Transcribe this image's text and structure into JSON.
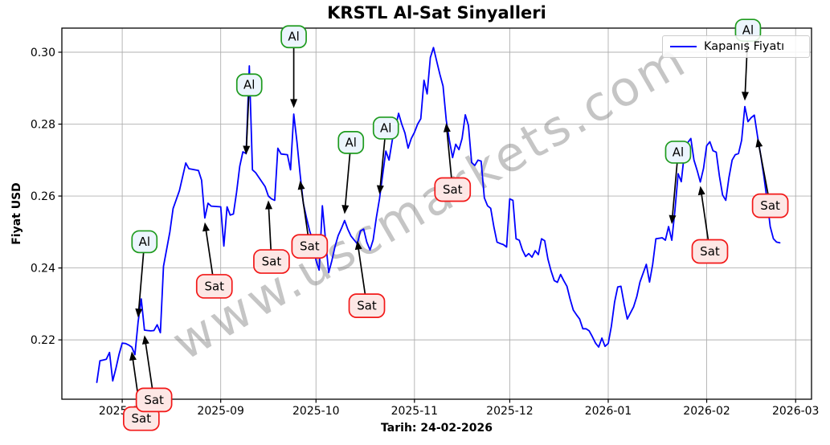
{
  "title": "KRSTL Al-Sat Sinyalleri",
  "watermark": "www.uscmarkets.com",
  "axes": {
    "y_label": "Fiyat USD",
    "x_label": "Tarih: 24-02-2026"
  },
  "legend": {
    "label": "Kapanış Fiyatı",
    "position": "upper right"
  },
  "colors": {
    "line": "#0000ff",
    "grid": "#b0b0b0",
    "buy_fill": "#ecf5fd",
    "buy_edge": "#1e9b1e",
    "sell_fill": "#fde7e5",
    "sell_edge": "#f21818",
    "arrow": "#000000",
    "watermark": "#7f7f7f"
  },
  "chart_data": {
    "type": "line",
    "title": "KRSTL Al-Sat Sinyalleri",
    "xlabel": "Tarih: 24-02-2026",
    "ylabel": "Fiyat USD",
    "grid": true,
    "legend_position": "upper right",
    "x_domain": [
      "2025-07-13",
      "2026-03-06"
    ],
    "y_domain": [
      0.2035,
      0.3067
    ],
    "x_ticks": [
      {
        "date": "2025-08-01",
        "label": "2025-08"
      },
      {
        "date": "2025-09-01",
        "label": "2025-09"
      },
      {
        "date": "2025-10-01",
        "label": "2025-10"
      },
      {
        "date": "2025-11-01",
        "label": "2025-11"
      },
      {
        "date": "2025-12-01",
        "label": "2025-12"
      },
      {
        "date": "2026-01-01",
        "label": "2026-01"
      },
      {
        "date": "2026-02-01",
        "label": "2026-02"
      },
      {
        "date": "2026-03-01",
        "label": "2026-03"
      }
    ],
    "y_ticks": [
      {
        "value": 0.22,
        "label": "0.22"
      },
      {
        "value": 0.24,
        "label": "0.24"
      },
      {
        "value": 0.26,
        "label": "0.26"
      },
      {
        "value": 0.28,
        "label": "0.28"
      },
      {
        "value": 0.3,
        "label": "0.30"
      }
    ],
    "series": [
      {
        "name": "Kapanış Fiyatı",
        "color": "#0000ff",
        "points": [
          [
            "2025-07-24",
            0.2082
          ],
          [
            "2025-07-25",
            0.2142
          ],
          [
            "2025-07-26",
            0.2144
          ],
          [
            "2025-07-27",
            0.2146
          ],
          [
            "2025-07-28",
            0.2165
          ],
          [
            "2025-07-29",
            0.2086
          ],
          [
            "2025-07-30",
            0.212
          ],
          [
            "2025-07-31",
            0.216
          ],
          [
            "2025-08-01",
            0.2191
          ],
          [
            "2025-08-02",
            0.219
          ],
          [
            "2025-08-03",
            0.2186
          ],
          [
            "2025-08-04",
            0.218
          ],
          [
            "2025-08-05",
            0.2159
          ],
          [
            "2025-08-06",
            0.225
          ],
          [
            "2025-08-07",
            0.2314
          ],
          [
            "2025-08-08",
            0.2227
          ],
          [
            "2025-08-09",
            0.2226
          ],
          [
            "2025-08-10",
            0.2225
          ],
          [
            "2025-08-11",
            0.2226
          ],
          [
            "2025-08-12",
            0.2242
          ],
          [
            "2025-08-13",
            0.222
          ],
          [
            "2025-08-14",
            0.2405
          ],
          [
            "2025-08-16",
            0.25
          ],
          [
            "2025-08-17",
            0.2565
          ],
          [
            "2025-08-19",
            0.2615
          ],
          [
            "2025-08-21",
            0.2692
          ],
          [
            "2025-08-22",
            0.2676
          ],
          [
            "2025-08-25",
            0.2671
          ],
          [
            "2025-08-26",
            0.2644
          ],
          [
            "2025-08-27",
            0.2539
          ],
          [
            "2025-08-28",
            0.258
          ],
          [
            "2025-08-29",
            0.2572
          ],
          [
            "2025-09-01",
            0.257
          ],
          [
            "2025-09-02",
            0.2461
          ],
          [
            "2025-09-03",
            0.257
          ],
          [
            "2025-09-04",
            0.2547
          ],
          [
            "2025-09-05",
            0.255
          ],
          [
            "2025-09-06",
            0.261
          ],
          [
            "2025-09-07",
            0.2683
          ],
          [
            "2025-09-08",
            0.2723
          ],
          [
            "2025-09-09",
            0.2718
          ],
          [
            "2025-09-10",
            0.2962
          ],
          [
            "2025-09-11",
            0.2673
          ],
          [
            "2025-09-12",
            0.2665
          ],
          [
            "2025-09-13",
            0.2652
          ],
          [
            "2025-09-14",
            0.2639
          ],
          [
            "2025-09-15",
            0.2626
          ],
          [
            "2025-09-16",
            0.26
          ],
          [
            "2025-09-17",
            0.2592
          ],
          [
            "2025-09-18",
            0.2588
          ],
          [
            "2025-09-19",
            0.2733
          ],
          [
            "2025-09-20",
            0.2717
          ],
          [
            "2025-09-22",
            0.2715
          ],
          [
            "2025-09-23",
            0.2673
          ],
          [
            "2025-09-24",
            0.2828
          ],
          [
            "2025-09-25",
            0.275
          ],
          [
            "2025-09-26",
            0.2661
          ],
          [
            "2025-09-27",
            0.258
          ],
          [
            "2025-09-28",
            0.254
          ],
          [
            "2025-09-29",
            0.2503
          ],
          [
            "2025-09-30",
            0.2476
          ],
          [
            "2025-10-01",
            0.2421
          ],
          [
            "2025-10-02",
            0.2394
          ],
          [
            "2025-10-03",
            0.2573
          ],
          [
            "2025-10-04",
            0.248
          ],
          [
            "2025-10-05",
            0.2387
          ],
          [
            "2025-10-06",
            0.242
          ],
          [
            "2025-10-07",
            0.246
          ],
          [
            "2025-10-08",
            0.249
          ],
          [
            "2025-10-09",
            0.251
          ],
          [
            "2025-10-10",
            0.2532
          ],
          [
            "2025-10-11",
            0.2508
          ],
          [
            "2025-10-12",
            0.2489
          ],
          [
            "2025-10-13",
            0.2478
          ],
          [
            "2025-10-14",
            0.2467
          ],
          [
            "2025-10-15",
            0.2503
          ],
          [
            "2025-10-16",
            0.2508
          ],
          [
            "2025-10-17",
            0.2472
          ],
          [
            "2025-10-18",
            0.245
          ],
          [
            "2025-10-19",
            0.2478
          ],
          [
            "2025-10-20",
            0.254
          ],
          [
            "2025-10-21",
            0.2592
          ],
          [
            "2025-10-22",
            0.266
          ],
          [
            "2025-10-23",
            0.2725
          ],
          [
            "2025-10-24",
            0.27
          ],
          [
            "2025-10-25",
            0.2755
          ],
          [
            "2025-10-26",
            0.279
          ],
          [
            "2025-10-27",
            0.283
          ],
          [
            "2025-10-28",
            0.28
          ],
          [
            "2025-10-29",
            0.2775
          ],
          [
            "2025-10-30",
            0.2733
          ],
          [
            "2025-10-31",
            0.276
          ],
          [
            "2025-11-01",
            0.2777
          ],
          [
            "2025-11-02",
            0.28
          ],
          [
            "2025-11-03",
            0.2815
          ],
          [
            "2025-11-04",
            0.2922
          ],
          [
            "2025-11-05",
            0.2884
          ],
          [
            "2025-11-06",
            0.2985
          ],
          [
            "2025-11-07",
            0.3013
          ],
          [
            "2025-11-08",
            0.2975
          ],
          [
            "2025-11-09",
            0.2938
          ],
          [
            "2025-11-10",
            0.2906
          ],
          [
            "2025-11-11",
            0.2811
          ],
          [
            "2025-11-12",
            0.2755
          ],
          [
            "2025-11-13",
            0.2707
          ],
          [
            "2025-11-14",
            0.2744
          ],
          [
            "2025-11-15",
            0.2729
          ],
          [
            "2025-11-16",
            0.276
          ],
          [
            "2025-11-17",
            0.2826
          ],
          [
            "2025-11-18",
            0.2796
          ],
          [
            "2025-11-19",
            0.2693
          ],
          [
            "2025-11-20",
            0.2685
          ],
          [
            "2025-11-21",
            0.27
          ],
          [
            "2025-11-22",
            0.2697
          ],
          [
            "2025-11-23",
            0.2595
          ],
          [
            "2025-11-24",
            0.2573
          ],
          [
            "2025-11-25",
            0.2566
          ],
          [
            "2025-11-26",
            0.2514
          ],
          [
            "2025-11-27",
            0.2472
          ],
          [
            "2025-11-28",
            0.2468
          ],
          [
            "2025-11-29",
            0.2465
          ],
          [
            "2025-11-30",
            0.2458
          ],
          [
            "2025-12-01",
            0.2592
          ],
          [
            "2025-12-02",
            0.2588
          ],
          [
            "2025-12-03",
            0.2481
          ],
          [
            "2025-12-04",
            0.2477
          ],
          [
            "2025-12-05",
            0.245
          ],
          [
            "2025-12-06",
            0.2432
          ],
          [
            "2025-12-07",
            0.244
          ],
          [
            "2025-12-08",
            0.243
          ],
          [
            "2025-12-09",
            0.2448
          ],
          [
            "2025-12-10",
            0.2437
          ],
          [
            "2025-12-11",
            0.2481
          ],
          [
            "2025-12-12",
            0.2476
          ],
          [
            "2025-12-13",
            0.2425
          ],
          [
            "2025-12-14",
            0.2392
          ],
          [
            "2025-12-15",
            0.2365
          ],
          [
            "2025-12-16",
            0.236
          ],
          [
            "2025-12-17",
            0.2382
          ],
          [
            "2025-12-18",
            0.2365
          ],
          [
            "2025-12-19",
            0.2349
          ],
          [
            "2025-12-20",
            0.2314
          ],
          [
            "2025-12-21",
            0.2283
          ],
          [
            "2025-12-22",
            0.227
          ],
          [
            "2025-12-23",
            0.2258
          ],
          [
            "2025-12-24",
            0.2231
          ],
          [
            "2025-12-25",
            0.2231
          ],
          [
            "2025-12-26",
            0.2225
          ],
          [
            "2025-12-27",
            0.2209
          ],
          [
            "2025-12-28",
            0.2191
          ],
          [
            "2025-12-29",
            0.218
          ],
          [
            "2025-12-30",
            0.2205
          ],
          [
            "2025-12-31",
            0.2182
          ],
          [
            "2026-01-01",
            0.219
          ],
          [
            "2026-01-02",
            0.2238
          ],
          [
            "2026-01-03",
            0.2305
          ],
          [
            "2026-01-04",
            0.2347
          ],
          [
            "2026-01-05",
            0.2349
          ],
          [
            "2026-01-06",
            0.23
          ],
          [
            "2026-01-07",
            0.2258
          ],
          [
            "2026-01-09",
            0.2292
          ],
          [
            "2026-01-10",
            0.2321
          ],
          [
            "2026-01-11",
            0.2361
          ],
          [
            "2026-01-13",
            0.241
          ],
          [
            "2026-01-14",
            0.2361
          ],
          [
            "2026-01-15",
            0.241
          ],
          [
            "2026-01-16",
            0.2481
          ],
          [
            "2026-01-18",
            0.2484
          ],
          [
            "2026-01-19",
            0.2477
          ],
          [
            "2026-01-20",
            0.2515
          ],
          [
            "2026-01-21",
            0.2477
          ],
          [
            "2026-01-22",
            0.256
          ],
          [
            "2026-01-23",
            0.2662
          ],
          [
            "2026-01-24",
            0.264
          ],
          [
            "2026-01-25",
            0.2722
          ],
          [
            "2026-01-26",
            0.2748
          ],
          [
            "2026-01-27",
            0.276
          ],
          [
            "2026-01-28",
            0.27
          ],
          [
            "2026-01-29",
            0.2671
          ],
          [
            "2026-01-30",
            0.2639
          ],
          [
            "2026-01-31",
            0.2677
          ],
          [
            "2026-02-01",
            0.274
          ],
          [
            "2026-02-02",
            0.2751
          ],
          [
            "2026-02-03",
            0.2726
          ],
          [
            "2026-02-04",
            0.2722
          ],
          [
            "2026-02-05",
            0.2655
          ],
          [
            "2026-02-06",
            0.2603
          ],
          [
            "2026-02-07",
            0.2588
          ],
          [
            "2026-02-08",
            0.2651
          ],
          [
            "2026-02-09",
            0.27
          ],
          [
            "2026-02-10",
            0.2715
          ],
          [
            "2026-02-11",
            0.2718
          ],
          [
            "2026-02-12",
            0.2755
          ],
          [
            "2026-02-13",
            0.2849
          ],
          [
            "2026-02-14",
            0.2807
          ],
          [
            "2026-02-15",
            0.2818
          ],
          [
            "2026-02-16",
            0.2825
          ],
          [
            "2026-02-17",
            0.2766
          ],
          [
            "2026-02-18",
            0.2715
          ],
          [
            "2026-02-19",
            0.2655
          ],
          [
            "2026-02-20",
            0.2588
          ],
          [
            "2026-02-21",
            0.2515
          ],
          [
            "2026-02-22",
            0.2481
          ],
          [
            "2026-02-23",
            0.2472
          ],
          [
            "2026-02-24",
            0.247
          ]
        ]
      }
    ],
    "signals": [
      {
        "label": "Sat",
        "kind": "sell",
        "box": [
          "2025-08-07",
          0.1981
        ],
        "tip": [
          "2025-08-04",
          0.2168
        ]
      },
      {
        "label": "Al",
        "kind": "buy",
        "box": [
          "2025-08-08",
          0.2473
        ],
        "tip": [
          "2025-08-06",
          0.2262
        ]
      },
      {
        "label": "Sat",
        "kind": "sell",
        "box": [
          "2025-08-11",
          0.2033
        ],
        "tip": [
          "2025-08-08",
          0.2213
        ]
      },
      {
        "label": "Sat",
        "kind": "sell",
        "box": [
          "2025-08-30",
          0.2349
        ],
        "tip": [
          "2025-08-27",
          0.2527
        ]
      },
      {
        "label": "Al",
        "kind": "buy",
        "box": [
          "2025-09-10",
          0.2909
        ],
        "tip": [
          "2025-09-09",
          0.2715
        ]
      },
      {
        "label": "Sat",
        "kind": "sell",
        "box": [
          "2025-09-17",
          0.2418
        ],
        "tip": [
          "2025-09-16",
          0.2588
        ]
      },
      {
        "label": "Al",
        "kind": "buy",
        "box": [
          "2025-09-24",
          0.3043
        ],
        "tip": [
          "2025-09-24",
          0.2845
        ]
      },
      {
        "label": "Sat",
        "kind": "sell",
        "box": [
          "2025-09-29",
          0.246
        ],
        "tip": [
          "2025-09-26",
          0.2643
        ]
      },
      {
        "label": "Al",
        "kind": "buy",
        "box": [
          "2025-10-12",
          0.2749
        ],
        "tip": [
          "2025-10-10",
          0.255
        ]
      },
      {
        "label": "Sat",
        "kind": "sell",
        "box": [
          "2025-10-17",
          0.2295
        ],
        "tip": [
          "2025-10-14",
          0.2476
        ]
      },
      {
        "label": "Al",
        "kind": "buy",
        "box": [
          "2025-10-23",
          0.2789
        ],
        "tip": [
          "2025-10-21",
          0.2605
        ]
      },
      {
        "label": "Sat",
        "kind": "sell",
        "box": [
          "2025-11-13",
          0.2618
        ],
        "tip": [
          "2025-11-11",
          0.2803
        ]
      },
      {
        "label": "Al",
        "kind": "buy",
        "box": [
          "2026-01-23",
          0.2722
        ],
        "tip": [
          "2026-01-21",
          0.2522
        ]
      },
      {
        "label": "Sat",
        "kind": "sell",
        "box": [
          "2026-02-02",
          0.2446
        ],
        "tip": [
          "2026-01-30",
          0.2628
        ]
      },
      {
        "label": "Al",
        "kind": "buy",
        "box": [
          "2026-02-14",
          0.3061
        ],
        "tip": [
          "2026-02-13",
          0.2865
        ]
      },
      {
        "label": "Sat",
        "kind": "sell",
        "box": [
          "2026-02-21",
          0.2573
        ],
        "tip": [
          "2026-02-17",
          0.2761
        ]
      }
    ]
  }
}
